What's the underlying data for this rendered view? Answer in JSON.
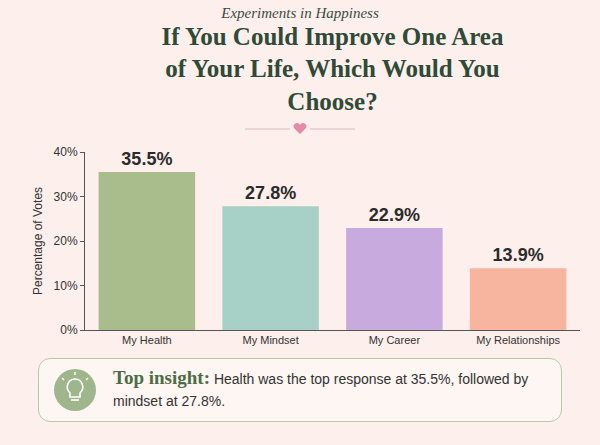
{
  "chart_data": {
    "type": "bar",
    "subtitle": "Experiments in Happiness",
    "title": "If You Could Improve One Area of Your Life, Which Would You Choose?",
    "y_label": "Percentage of Votes",
    "categories": [
      "My Health",
      "My Mindset",
      "My Career",
      "My Relationships"
    ],
    "values": [
      35.5,
      27.8,
      22.9,
      13.9
    ],
    "value_labels": [
      "35.5%",
      "27.8%",
      "22.9%",
      "13.9%"
    ],
    "colors": [
      "#a9bc8b",
      "#a7d0c6",
      "#c9aade",
      "#f7b49f"
    ],
    "ylim": [
      0,
      40
    ],
    "yticks": [
      {
        "value": 0,
        "label": "0%"
      },
      {
        "value": 10,
        "label": "10%"
      },
      {
        "value": 20,
        "label": "20%"
      },
      {
        "value": 30,
        "label": "30%"
      },
      {
        "value": 40,
        "label": "40%"
      }
    ],
    "grid": false,
    "data_labels": true,
    "annotations": [
      {
        "label": "Top insight:",
        "text": "Health was the top response at 35.5%, followed by mindset at 27.8%."
      }
    ]
  }
}
